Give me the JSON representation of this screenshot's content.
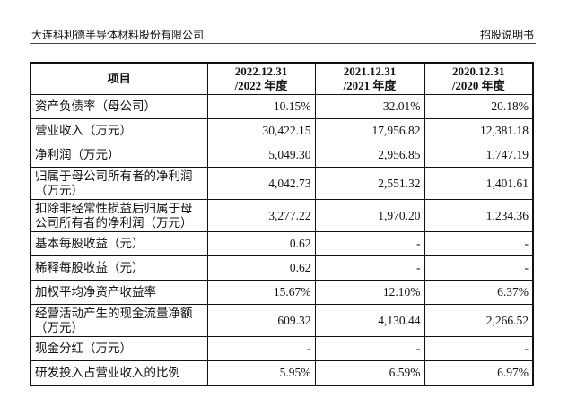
{
  "header": {
    "company": "大连科利德半导体材料股份有限公司",
    "doc": "招股说明书"
  },
  "table": {
    "columns": [
      "项目",
      "2022.12.31 /2022 年度",
      "2021.12.31 /2021 年度",
      "2020.12.31 /2020 年度"
    ],
    "rows": [
      {
        "item": "资产负债率（母公司）",
        "v": [
          "10.15%",
          "32.01%",
          "20.18%"
        ]
      },
      {
        "item": "营业收入（万元）",
        "v": [
          "30,422.15",
          "17,956.82",
          "12,381.18"
        ]
      },
      {
        "item": "净利润（万元）",
        "v": [
          "5,049.30",
          "2,956.85",
          "1,747.19"
        ]
      },
      {
        "item": "归属于母公司所有者的净利润（万元）",
        "v": [
          "4,042.73",
          "2,551.32",
          "1,401.61"
        ]
      },
      {
        "item": "扣除非经常性损益后归属于母公司所有者的净利润（万元）",
        "v": [
          "3,277.22",
          "1,970.20",
          "1,234.36"
        ]
      },
      {
        "item": "基本每股收益（元）",
        "v": [
          "0.62",
          "-",
          "-"
        ]
      },
      {
        "item": "稀释每股收益（元）",
        "v": [
          "0.62",
          "-",
          "-"
        ]
      },
      {
        "item": "加权平均净资产收益率",
        "v": [
          "15.67%",
          "12.10%",
          "6.37%"
        ]
      },
      {
        "item": "经营活动产生的现金流量净额（万元）",
        "v": [
          "609.32",
          "4,130.44",
          "2,266.52"
        ]
      },
      {
        "item": "现金分红（万元）",
        "v": [
          "-",
          "-",
          "-"
        ]
      },
      {
        "item": "研发投入占营业收入的比例",
        "v": [
          "5.95%",
          "6.59%",
          "6.97%"
        ]
      }
    ]
  }
}
